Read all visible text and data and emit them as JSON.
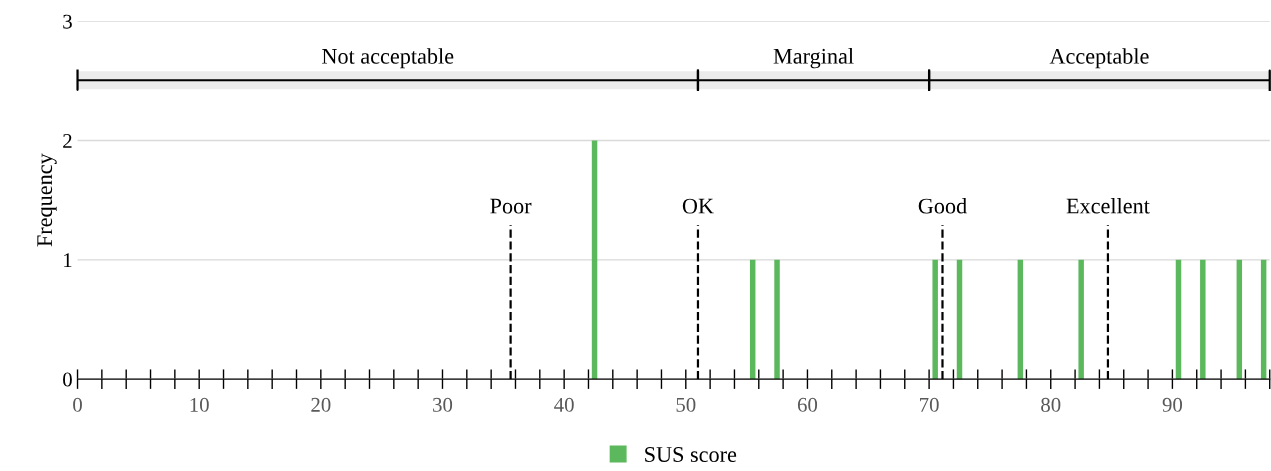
{
  "chart_data": {
    "type": "bar",
    "ylabel": "Frequency",
    "x": [
      42.5,
      55.5,
      57.5,
      70.5,
      72.5,
      77.5,
      82.5,
      90.5,
      92.5,
      95.5,
      97.5
    ],
    "series": [
      {
        "name": "SUS score",
        "color": "#5cb85c",
        "values": [
          2,
          1,
          1,
          1,
          1,
          1,
          1,
          1,
          1,
          1,
          1
        ]
      }
    ],
    "xlim": [
      0,
      98
    ],
    "xticks": [
      0,
      10,
      20,
      30,
      40,
      50,
      60,
      70,
      80,
      90
    ],
    "ylim": [
      0,
      3
    ],
    "yticks": [
      0,
      1,
      2,
      3
    ],
    "grid": "y",
    "legend": "bottom",
    "ref_lines": [
      {
        "axis": "x",
        "value": 35.6,
        "label": "Poor",
        "color": "#000000",
        "line_style": "dashed"
      },
      {
        "axis": "x",
        "value": 51.0,
        "label": "OK",
        "color": "#000000",
        "line_style": "dashed"
      },
      {
        "axis": "x",
        "value": 71.1,
        "label": "Good",
        "color": "#000000",
        "line_style": "dashed"
      },
      {
        "axis": "x",
        "value": 84.7,
        "label": "Excellent",
        "color": "#000000",
        "line_style": "dashed"
      }
    ],
    "bands": [
      {
        "axis": "x",
        "from": 0,
        "to": 51,
        "label": "Not acceptable",
        "color": "#000000"
      },
      {
        "axis": "x",
        "from": 51,
        "to": 70,
        "label": "Marginal",
        "color": "#000000"
      },
      {
        "axis": "x",
        "from": 70,
        "to": 98,
        "label": "Acceptable",
        "color": "#000000"
      }
    ]
  }
}
